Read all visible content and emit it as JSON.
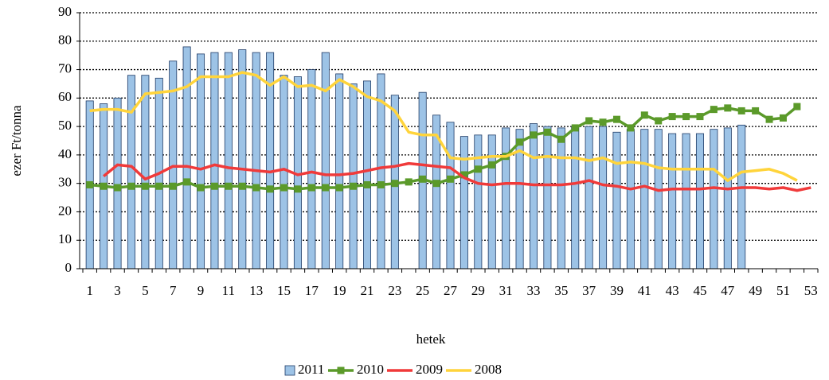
{
  "chart_data": {
    "type": "combo",
    "x_label": "hetek",
    "y_label": "ezer Ft/tonna",
    "categories": [
      1,
      null,
      3,
      null,
      5,
      null,
      7,
      null,
      9,
      null,
      11,
      null,
      13,
      null,
      15,
      null,
      17,
      null,
      19,
      null,
      21,
      null,
      23,
      null,
      25,
      null,
      27,
      null,
      29,
      null,
      31,
      null,
      33,
      null,
      35,
      null,
      37,
      null,
      39,
      null,
      41,
      null,
      43,
      null,
      45,
      null,
      47,
      null,
      49,
      null,
      51,
      null,
      53
    ],
    "ylim": [
      0,
      90
    ],
    "yticks": [
      0,
      10,
      20,
      30,
      40,
      50,
      60,
      70,
      80,
      90
    ],
    "grid": true,
    "legend": "bottom",
    "series": [
      {
        "name": "2011",
        "type": "bar",
        "color": "#9dc3e6",
        "values": [
          59,
          58,
          60,
          68,
          68,
          67,
          73,
          78,
          75.5,
          76,
          76,
          77,
          76,
          76,
          68,
          67.5,
          70,
          76,
          68.5,
          65,
          66,
          68.5,
          61,
          null,
          62,
          54,
          51.5,
          46.5,
          47,
          47,
          49.5,
          49,
          51,
          50,
          49.5,
          50,
          50,
          50,
          48,
          49,
          49,
          49,
          47.5,
          47.5,
          47.5,
          49,
          49.5,
          50.5,
          null,
          null,
          null,
          null,
          null
        ]
      },
      {
        "name": "2010",
        "type": "line",
        "marker": "square",
        "color": "#5b9a2a",
        "values": [
          29.5,
          29,
          28.5,
          29,
          29,
          29,
          29,
          30.5,
          28.5,
          29,
          29,
          29,
          28.5,
          28,
          28.5,
          28,
          28.5,
          28.5,
          28.5,
          29,
          29.5,
          29.5,
          30,
          30.5,
          31.5,
          30,
          31.5,
          33,
          35,
          36.5,
          39.5,
          44.5,
          47,
          48,
          45.5,
          49.5,
          52,
          51.5,
          52.5,
          49.5,
          54,
          52,
          53.5,
          53.5,
          53.5,
          56,
          56.5,
          55.5,
          55.5,
          52.5,
          53,
          57,
          null
        ]
      },
      {
        "name": "2009",
        "type": "line",
        "color": "#f03a3a",
        "values": [
          null,
          32.5,
          36.5,
          36,
          31.5,
          33.5,
          36,
          36,
          35,
          36.5,
          35.5,
          35,
          34.5,
          34,
          35,
          33,
          34,
          33,
          33,
          33.5,
          34.5,
          35.5,
          36,
          37,
          36.5,
          36,
          35.5,
          32,
          30,
          29.5,
          30,
          30,
          29.5,
          29.5,
          29.5,
          30,
          31,
          29.5,
          29,
          28,
          29,
          27.5,
          28,
          28,
          28,
          28.5,
          28,
          28.5,
          28.5,
          28,
          28.5,
          27.5,
          28.5
        ]
      },
      {
        "name": "2008",
        "type": "line",
        "color": "#ffd43b",
        "values": [
          55.5,
          56,
          56,
          55,
          61.5,
          62,
          62.5,
          64,
          67.5,
          67.5,
          67.5,
          69,
          68,
          64.5,
          67.5,
          64,
          64.5,
          62.5,
          66.5,
          64,
          60.5,
          59,
          55.5,
          48,
          47,
          47,
          39,
          38.5,
          39,
          39.5,
          39.5,
          41.5,
          39,
          39.5,
          39,
          39,
          38,
          39,
          37,
          37.5,
          37,
          35.5,
          35,
          35,
          35,
          35,
          31,
          34,
          34.5,
          35,
          33.5,
          31,
          null
        ]
      }
    ]
  }
}
